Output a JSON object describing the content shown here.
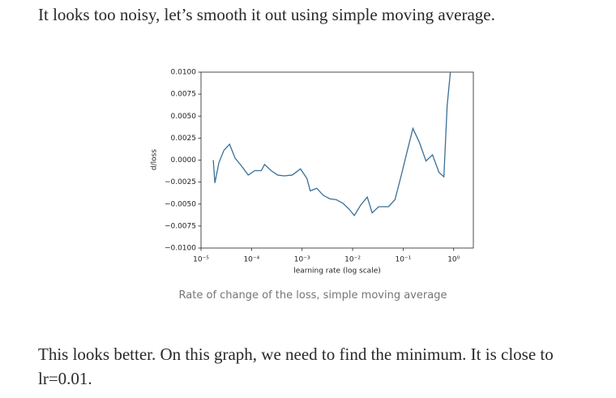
{
  "paragraphs": [
    "It looks too noisy, let’s smooth it out using simple moving average.",
    "This looks better. On this graph, we need to find the minimum. It is close to lr=0.01."
  ],
  "figure": {
    "caption": "Rate of change of the loss, simple moving average"
  },
  "chart_data": {
    "type": "line",
    "x_label": "learning rate (log scale)",
    "y_label": "d/loss",
    "x_scale": "log",
    "xlim": [
      1e-05,
      2.45
    ],
    "ylim": [
      -0.01,
      0.01
    ],
    "xticks": [
      {
        "value": 1e-05,
        "label": "10⁻⁵"
      },
      {
        "value": 0.0001,
        "label": "10⁻⁴"
      },
      {
        "value": 0.001,
        "label": "10⁻³"
      },
      {
        "value": 0.01,
        "label": "10⁻²"
      },
      {
        "value": 0.1,
        "label": "10⁻¹"
      },
      {
        "value": 1,
        "label": "10⁰"
      }
    ],
    "yticks": [
      {
        "value": -0.01,
        "label": "−0.0100"
      },
      {
        "value": -0.0075,
        "label": "−0.0075"
      },
      {
        "value": -0.005,
        "label": "−0.0050"
      },
      {
        "value": -0.0025,
        "label": "−0.0025"
      },
      {
        "value": 0,
        "label": "0.0000"
      },
      {
        "value": 0.0025,
        "label": "0.0025"
      },
      {
        "value": 0.005,
        "label": "0.0050"
      },
      {
        "value": 0.0075,
        "label": "0.0075"
      },
      {
        "value": 0.01,
        "label": "0.0100"
      }
    ],
    "x": [
      1.75e-05,
      1.88e-05,
      2.26e-05,
      2.83e-05,
      3.67e-05,
      4.75e-05,
      6.4e-05,
      8.6e-05,
      0.000116,
      0.000156,
      0.000181,
      0.000244,
      0.000328,
      0.000442,
      0.00064,
      0.00093,
      0.00125,
      0.00145,
      0.00195,
      0.00262,
      0.00353,
      0.00475,
      0.0064,
      0.0086,
      0.0108,
      0.0145,
      0.0195,
      0.0244,
      0.0328,
      0.0513,
      0.069,
      0.093,
      0.125,
      0.156,
      0.21,
      0.283,
      0.381,
      0.513,
      0.64,
      0.743,
      0.861
    ],
    "series": [
      {
        "color": "#3a6f96",
        "values": [
          0.0,
          -0.0026,
          -0.0003,
          0.0011,
          0.0018,
          0.0002,
          -0.0007,
          -0.0017,
          -0.0012,
          -0.0012,
          -0.0005,
          -0.0012,
          -0.0017,
          -0.0018,
          -0.0017,
          -0.001,
          -0.0021,
          -0.0035,
          -0.0032,
          -0.004,
          -0.0044,
          -0.0045,
          -0.0049,
          -0.0056,
          -0.0063,
          -0.0051,
          -0.0042,
          -0.006,
          -0.0053,
          -0.0053,
          -0.0045,
          -0.0016,
          0.0014,
          0.0036,
          0.002,
          -0.0001,
          0.0006,
          -0.0014,
          -0.0019,
          0.0062,
          0.01
        ]
      }
    ]
  }
}
